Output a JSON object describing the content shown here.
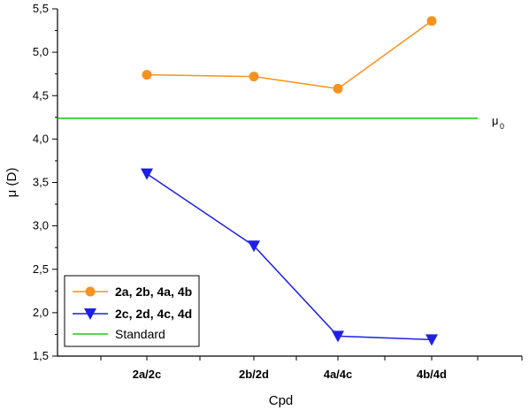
{
  "chart_data": {
    "type": "line",
    "xlabel": "Cpd",
    "ylabel": "μ (D)",
    "categories": [
      "2a/2c",
      "2b/2d",
      "4a/4c",
      "4b/4d"
    ],
    "ylim": [
      1.5,
      5.5
    ],
    "yticks": [
      "1,5",
      "2,0",
      "2,5",
      "3,0",
      "3,5",
      "4,0",
      "4,5",
      "5,0",
      "5,5"
    ],
    "series": [
      {
        "name": "2a, 2b, 4a, 4b",
        "color": "#f7921e",
        "marker": "circle",
        "values": [
          4.74,
          4.72,
          4.58,
          5.36
        ]
      },
      {
        "name": "2c, 2d, 4c, 4d",
        "color": "#1f1fe6",
        "marker": "triangle-down",
        "values": [
          3.6,
          2.77,
          1.73,
          1.69
        ]
      }
    ],
    "reference_line": {
      "name": "Standard",
      "value": 4.24,
      "color": "#19cc19",
      "annotation_main": "μ",
      "annotation_sub": "0"
    },
    "legend_position": "bottom-left",
    "grid": false
  }
}
